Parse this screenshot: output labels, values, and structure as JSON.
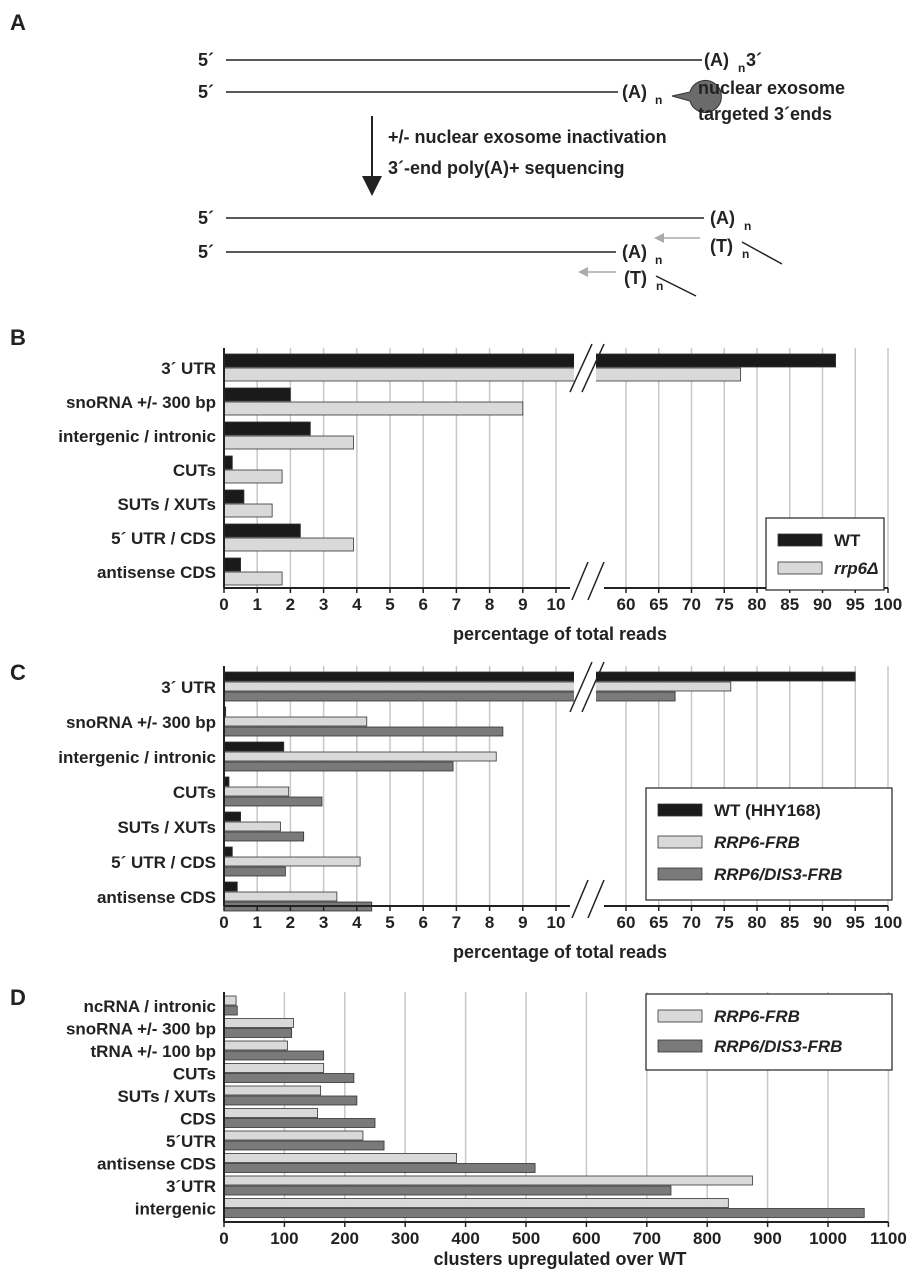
{
  "panels": {
    "a": {
      "letter": "A",
      "five_prime": "5´",
      "three_prime": "3´",
      "polyA": "(A)",
      "polyT": "(T)",
      "sub_n": "n",
      "exosome_label_1": "nuclear exosome",
      "exosome_label_2": "targeted 3´ends",
      "step_1": "+/- nuclear exosome inactivation",
      "step_2": "3´-end poly(A)+ sequencing"
    },
    "b": {
      "letter": "B"
    },
    "c": {
      "letter": "C"
    },
    "d": {
      "letter": "D"
    }
  },
  "chart_data": [
    {
      "panel": "B",
      "type": "bar",
      "orientation": "horizontal",
      "broken_axis": true,
      "categories": [
        "3´ UTR",
        "snoRNA +/- 300 bp",
        "intergenic / intronic",
        "CUTs",
        "SUTs / XUTs",
        "5´ UTR / CDS",
        "antisense CDS"
      ],
      "series": [
        {
          "name": "WT",
          "color": "#1a1a1a",
          "italic": false,
          "values": [
            92,
            2.0,
            2.6,
            0.25,
            0.6,
            2.3,
            0.5
          ]
        },
        {
          "name": "rrp6Δ",
          "color": "#d9d9d9",
          "italic": true,
          "values": [
            77.5,
            9.0,
            3.9,
            1.75,
            1.45,
            3.9,
            1.75
          ]
        }
      ],
      "xticks": [
        "0",
        "1",
        "2",
        "3",
        "4",
        "5",
        "6",
        "7",
        "8",
        "9",
        "10",
        "60",
        "65",
        "70",
        "75",
        "80",
        "85",
        "90",
        "95",
        "100"
      ],
      "xlabel": "percentage of total reads",
      "legend_position": "right"
    },
    {
      "panel": "C",
      "type": "bar",
      "orientation": "horizontal",
      "broken_axis": true,
      "categories": [
        "3´ UTR",
        "snoRNA +/- 300 bp",
        "intergenic / intronic",
        "CUTs",
        "SUTs / XUTs",
        "5´ UTR / CDS",
        "antisense CDS"
      ],
      "series": [
        {
          "name": "WT (HHY168)",
          "color": "#1a1a1a",
          "italic": false,
          "values": [
            95,
            0.05,
            1.8,
            0.15,
            0.5,
            0.25,
            0.4
          ]
        },
        {
          "name": "RRP6-FRB",
          "color": "#d9d9d9",
          "italic": true,
          "values": [
            76,
            4.3,
            8.2,
            1.95,
            1.7,
            4.1,
            3.4
          ]
        },
        {
          "name": "RRP6/DIS3-FRB",
          "color": "#7a7a7a",
          "italic": true,
          "values": [
            67.5,
            8.4,
            6.9,
            2.95,
            2.4,
            1.85,
            4.45
          ]
        }
      ],
      "xticks": [
        "0",
        "1",
        "2",
        "3",
        "4",
        "5",
        "6",
        "7",
        "8",
        "9",
        "10",
        "60",
        "65",
        "70",
        "75",
        "80",
        "85",
        "90",
        "95",
        "100"
      ],
      "xlabel": "percentage of total reads",
      "legend_position": "right"
    },
    {
      "panel": "D",
      "type": "bar",
      "orientation": "horizontal",
      "categories": [
        "ncRNA / intronic",
        "snoRNA +/- 300 bp",
        "tRNA +/- 100 bp",
        "CUTs",
        "SUTs / XUTs",
        "CDS",
        "5´UTR",
        "antisense CDS",
        "3´UTR",
        "intergenic"
      ],
      "series": [
        {
          "name": "RRP6-FRB",
          "color": "#d9d9d9",
          "italic": true,
          "values": [
            20,
            115,
            105,
            165,
            160,
            155,
            230,
            385,
            875,
            835
          ]
        },
        {
          "name": "RRP6/DIS3-FRB",
          "color": "#7a7a7a",
          "italic": true,
          "values": [
            22,
            112,
            165,
            215,
            220,
            250,
            265,
            515,
            740,
            1060
          ]
        }
      ],
      "xticks": [
        "0",
        "100",
        "200",
        "300",
        "400",
        "500",
        "600",
        "700",
        "800",
        "900",
        "1000",
        "1100"
      ],
      "xlim": [
        0,
        1100
      ],
      "xlabel": "clusters upregulated over WT",
      "legend_position": "top-right"
    }
  ]
}
